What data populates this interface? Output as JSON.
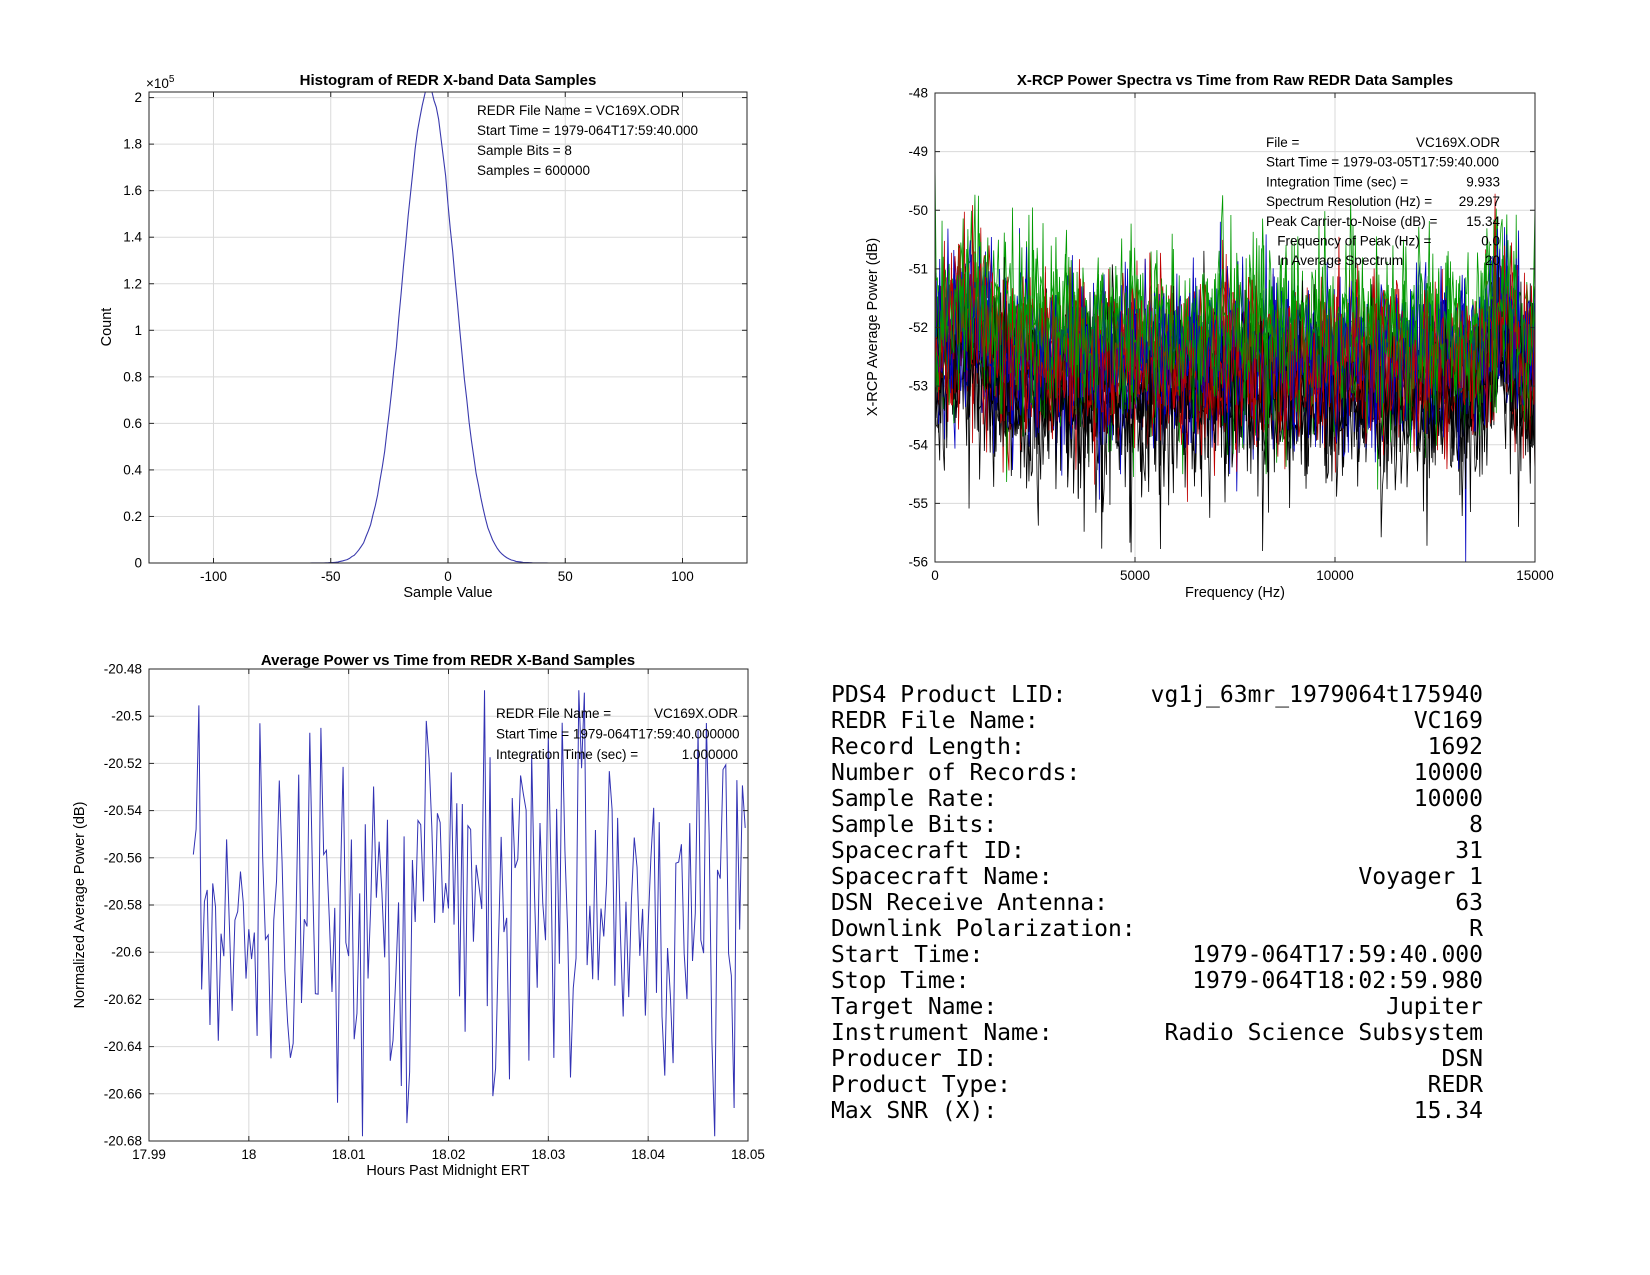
{
  "figure": {
    "background": "#ffffff"
  },
  "chart_data": [
    {
      "id": "histogram",
      "type": "line",
      "title": "Histogram of REDR X-band Data Samples",
      "xlabel": "Sample Value",
      "ylabel": "Count",
      "y_scale_label": "×10^5",
      "xlim": [
        -127.5,
        127.5
      ],
      "ylim": [
        0,
        202400
      ],
      "xticks": [
        -100,
        -50,
        0,
        50,
        100
      ],
      "xtick_labels": [
        "-100",
        "-50",
        "0",
        "50",
        "100"
      ],
      "yticks": [
        0,
        20000,
        40000,
        60000,
        80000,
        100000,
        120000,
        140000,
        160000,
        180000,
        200000
      ],
      "ytick_labels": [
        "0",
        "0.2",
        "0.4",
        "0.6",
        "0.8",
        "1",
        "1.2",
        "1.4",
        "1.6",
        "1.8",
        "2"
      ],
      "grid": true,
      "line_color": "#3a3aad",
      "annotations": [
        {
          "left": "REDR File Name = VC169X.ODR"
        },
        {
          "left": "Start Time = 1979-064T17:59:40.000"
        },
        {
          "left": "Sample Bits = 8"
        },
        {
          "left": "Samples = 600000"
        }
      ],
      "distribution": {
        "shape": "gaussian",
        "mean": -8.2,
        "sigma": 11.1,
        "peak_count": 203500,
        "x_start": -128,
        "x_end": 127,
        "bins": 256,
        "seed": 7
      }
    },
    {
      "id": "spectra",
      "type": "line",
      "title": "X-RCP Power Spectra vs Time from Raw REDR Data Samples",
      "xlabel": "Frequency (Hz)",
      "ylabel": "X-RCP Average Power (dB)",
      "xlim": [
        0,
        15000
      ],
      "ylim": [
        -56,
        -48
      ],
      "xticks": [
        0,
        5000,
        10000,
        15000
      ],
      "xtick_labels": [
        "0",
        "5000",
        "10000",
        "15000"
      ],
      "yticks": [
        -56,
        -55,
        -54,
        -53,
        -52,
        -51,
        -50,
        -49,
        -48
      ],
      "ytick_labels": [
        "-56",
        "-55",
        "-54",
        "-53",
        "-52",
        "-51",
        "-50",
        "-49",
        "-48"
      ],
      "grid": true,
      "annotations": [
        {
          "left": "File =",
          "right": "VC169X.ODR"
        },
        {
          "left": "Start Time = 1979-03-05T17:59:40.000"
        },
        {
          "left": "Integration Time (sec) =",
          "right": "9.933"
        },
        {
          "left": "Spectrum Resolution (Hz) =",
          "right": "29.297"
        },
        {
          "left": "Peak Carrier-to-Noise (dB) =",
          "right": "15.34"
        },
        {
          "left": "   Frequency of Peak (Hz) =",
          "right": "0.0"
        },
        {
          "left": "   In Average Spectrum",
          "right": "20"
        }
      ],
      "trace_colors": [
        "#000000",
        "#0000c0",
        "#c00000",
        "#009a00"
      ],
      "num_traces": 20,
      "points_per_trace": 512,
      "noise": {
        "band_top_db": -50.5,
        "band_bottom_db": -55.4,
        "trace_mean_db": {
          "black": -53.15,
          "blue": -52.65,
          "red": -52.55,
          "green": -52.3
        },
        "std_db": 0.62,
        "seed": 1234
      },
      "features": {
        "carrier_peak": {
          "hz": 0,
          "db": -49.15
        },
        "low_freq_bump": {
          "hz": 850,
          "db_gain": 0.5
        },
        "high_freq_bump": {
          "hz": 14150,
          "db_gain": 0.8
        },
        "edge_spike": {
          "hz": 15000,
          "db": -49.9
        }
      }
    },
    {
      "id": "avg_power",
      "type": "line",
      "title": "Average Power vs Time from REDR X-Band Samples",
      "xlabel": "Hours Past Midnight ERT",
      "ylabel": "Normalized Average Power (dB)",
      "xlim": [
        17.99,
        18.05
      ],
      "ylim": [
        -20.68,
        -20.48
      ],
      "xticks": [
        17.99,
        18,
        18.01,
        18.02,
        18.03,
        18.04,
        18.05
      ],
      "xtick_labels": [
        "17.99",
        "18",
        "18.01",
        "18.02",
        "18.03",
        "18.04",
        "18.05"
      ],
      "yticks": [
        -20.68,
        -20.66,
        -20.64,
        -20.62,
        -20.6,
        -20.58,
        -20.56,
        -20.54,
        -20.52,
        -20.5,
        -20.48
      ],
      "ytick_labels": [
        "-20.68",
        "-20.66",
        "-20.64",
        "-20.62",
        "-20.6",
        "-20.58",
        "-20.56",
        "-20.54",
        "-20.52",
        "-20.5",
        "-20.48"
      ],
      "grid": true,
      "line_color": "#3232b4",
      "annotations": [
        {
          "left": "REDR File Name =",
          "right": "VC169X.ODR"
        },
        {
          "left": "Start Time = 1979-064T17:59:40.000000"
        },
        {
          "left": "Integration Time (sec) =",
          "right": "1.000000"
        }
      ],
      "series": {
        "mean_db": -20.578,
        "std_db": 0.035,
        "min_db": -20.678,
        "max_db": -20.489,
        "t_start_hours": 17.99444,
        "t_end_hours": 18.04972,
        "points": 200,
        "seed": 99,
        "down_skew": 0.012,
        "outliers": [
          {
            "t": 18.0113,
            "db": -20.678
          },
          {
            "t": 18.0235,
            "db": -20.489
          },
          {
            "t": 18.0335,
            "db": -20.49
          },
          {
            "t": 18.0011,
            "db": -20.503
          },
          {
            "t": 18.006,
            "db": -20.507
          },
          {
            "t": 18.0178,
            "db": -20.502
          },
          {
            "t": 18.045,
            "db": -20.506
          },
          {
            "t": 18.0143,
            "db": -20.646
          },
          {
            "t": 18.0023,
            "db": -20.645
          },
          {
            "t": 18.0425,
            "db": -20.647
          },
          {
            "t": 18.0487,
            "db": -20.666
          },
          {
            "t": 18.0245,
            "db": -20.661
          }
        ]
      }
    }
  ],
  "metadata": {
    "rows": [
      {
        "label": "PDS4 Product LID:",
        "value": "vg1j_63mr_1979064t175940"
      },
      {
        "label": "REDR File Name:",
        "value": "VC169"
      },
      {
        "label": "Record Length:",
        "value": "1692"
      },
      {
        "label": "Number of Records:",
        "value": "10000"
      },
      {
        "label": "Sample Rate:",
        "value": "10000"
      },
      {
        "label": "Sample Bits:",
        "value": "8"
      },
      {
        "label": "Spacecraft ID:",
        "value": "31"
      },
      {
        "label": "Spacecraft Name:",
        "value": "Voyager 1"
      },
      {
        "label": "DSN Receive Antenna:",
        "value": "63"
      },
      {
        "label": "Downlink Polarization:",
        "value": "R"
      },
      {
        "label": "Start Time:",
        "value": "1979-064T17:59:40.000"
      },
      {
        "label": "Stop Time:",
        "value": "1979-064T18:02:59.980"
      },
      {
        "label": "Target Name:",
        "value": "Jupiter"
      },
      {
        "label": "Instrument Name:",
        "value": "Radio Science Subsystem"
      },
      {
        "label": "Producer ID:",
        "value": "DSN"
      },
      {
        "label": "Product Type:",
        "value": "REDR"
      },
      {
        "label": "Max SNR (X):",
        "value": "15.34"
      }
    ]
  }
}
